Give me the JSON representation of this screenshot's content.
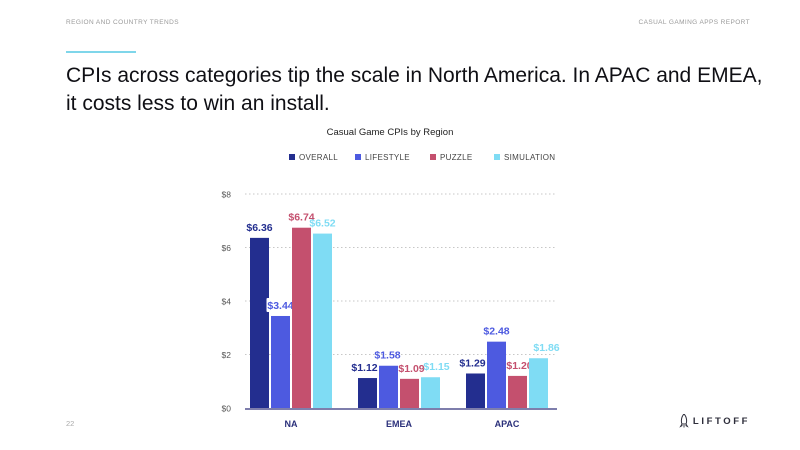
{
  "header": {
    "section_label": "REGION AND COUNTRY TRENDS",
    "report_label": "CASUAL GAMING APPS REPORT"
  },
  "headline": "CPIs across categories tip the scale in North America. In APAC and EMEA, it costs less to win an install.",
  "footer": {
    "page_number": "22",
    "logo_text": "LIFTOFF"
  },
  "chart_data": {
    "type": "bar",
    "title": "Casual Game CPIs by Region",
    "categories": [
      "NA",
      "EMEA",
      "APAC"
    ],
    "series": [
      {
        "name": "OVERALL",
        "color": "#232e8f",
        "values": [
          6.36,
          1.12,
          1.29
        ],
        "labels": [
          "$6.36",
          "$1.12",
          "$1.29"
        ]
      },
      {
        "name": "LIFESTYLE",
        "color": "#4d5ae0",
        "values": [
          3.44,
          1.58,
          2.48
        ],
        "labels": [
          "$3.44",
          "$1.58",
          "$2.48"
        ]
      },
      {
        "name": "PUZZLE",
        "color": "#c4506e",
        "values": [
          6.74,
          1.09,
          1.2
        ],
        "labels": [
          "$6.74",
          "$1.09",
          "$1.20"
        ]
      },
      {
        "name": "SIMULATION",
        "color": "#7fdcf4",
        "values": [
          6.52,
          1.15,
          1.86
        ],
        "labels": [
          "$6.52",
          "$1.15",
          "$1.86"
        ]
      }
    ],
    "ylim": [
      0,
      8
    ],
    "yticks": [
      0,
      2,
      4,
      6,
      8
    ],
    "ytick_labels": [
      "$0",
      "$2",
      "$4",
      "$6",
      "$8"
    ],
    "xlabel": "",
    "ylabel": "",
    "grid": true,
    "legend_position": "top-center"
  }
}
